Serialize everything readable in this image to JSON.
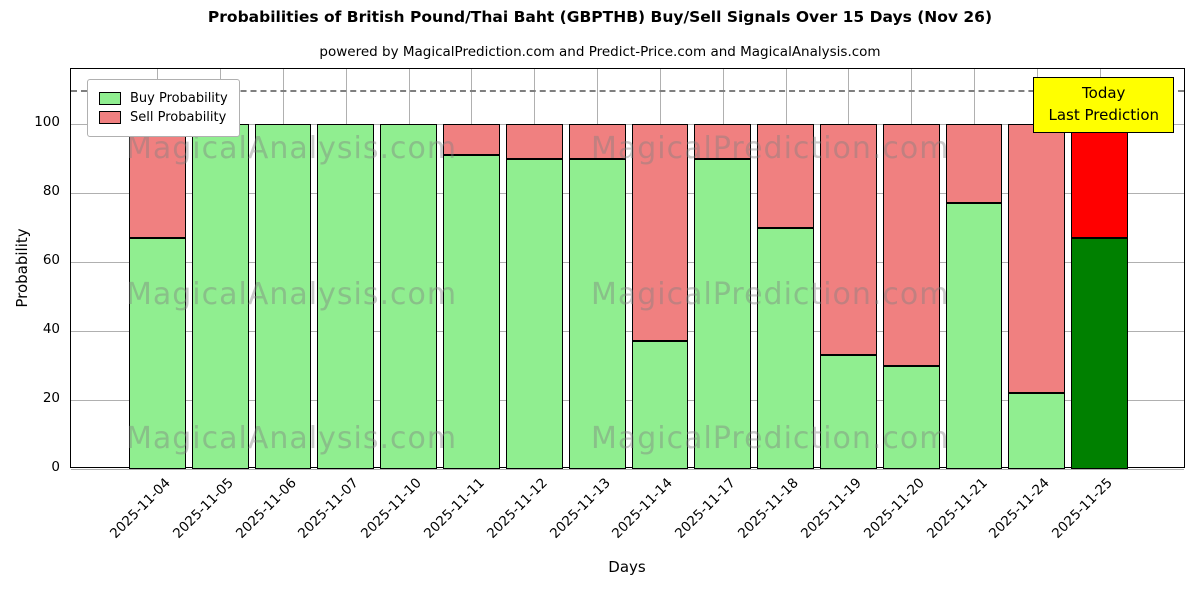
{
  "title": "Probabilities of British Pound/Thai Baht (GBPTHB) Buy/Sell Signals Over 15 Days (Nov 26)",
  "subtitle": "powered by MagicalPrediction.com and Predict-Price.com and MagicalAnalysis.com",
  "legend": {
    "buy": "Buy Probability",
    "sell": "Sell Probability"
  },
  "annotation": {
    "line1": "Today",
    "line2": "Last Prediction"
  },
  "axes": {
    "ylabel": "Probability",
    "xlabel": "Days",
    "yticks": [
      0,
      20,
      40,
      60,
      80,
      100
    ]
  },
  "watermarks": [
    "MagicalAnalysis.com",
    "MagicalPrediction.com",
    "MagicalAnalysis.com",
    "MagicalPrediction.com",
    "MagicalAnalysis.com",
    "MagicalPrediction.com"
  ],
  "colors": {
    "buy": "#90EE90",
    "sell": "#F08080",
    "today_buy": "#008000",
    "today_sell": "#FF0000",
    "annotation_bg": "#FFFF00",
    "grid": "#b0b0b0"
  },
  "chart_data": {
    "type": "bar",
    "stacked": true,
    "title": "Probabilities of British Pound/Thai Baht (GBPTHB) Buy/Sell Signals Over 15 Days (Nov 26)",
    "xlabel": "Days",
    "ylabel": "Probability",
    "ylim": [
      0,
      116
    ],
    "dashed_line_y": 110,
    "grid": true,
    "legend_position": "upper left",
    "categories": [
      "2025-11-04",
      "2025-11-05",
      "2025-11-06",
      "2025-11-07",
      "2025-11-10",
      "2025-11-11",
      "2025-11-12",
      "2025-11-13",
      "2025-11-14",
      "2025-11-17",
      "2025-11-18",
      "2025-11-19",
      "2025-11-20",
      "2025-11-21",
      "2025-11-24",
      "2025-11-25"
    ],
    "series": [
      {
        "name": "Buy Probability",
        "color": "#90EE90",
        "values": [
          67,
          100,
          100,
          100,
          100,
          91,
          90,
          90,
          37,
          90,
          70,
          33,
          30,
          77,
          22,
          67
        ]
      },
      {
        "name": "Sell Probability",
        "color": "#F08080",
        "values": [
          33,
          0,
          0,
          0,
          0,
          9,
          10,
          10,
          63,
          10,
          30,
          67,
          70,
          23,
          78,
          33
        ]
      }
    ],
    "today_colors": {
      "buy": "#008000",
      "sell": "#FF0000"
    },
    "today_index": 15
  }
}
